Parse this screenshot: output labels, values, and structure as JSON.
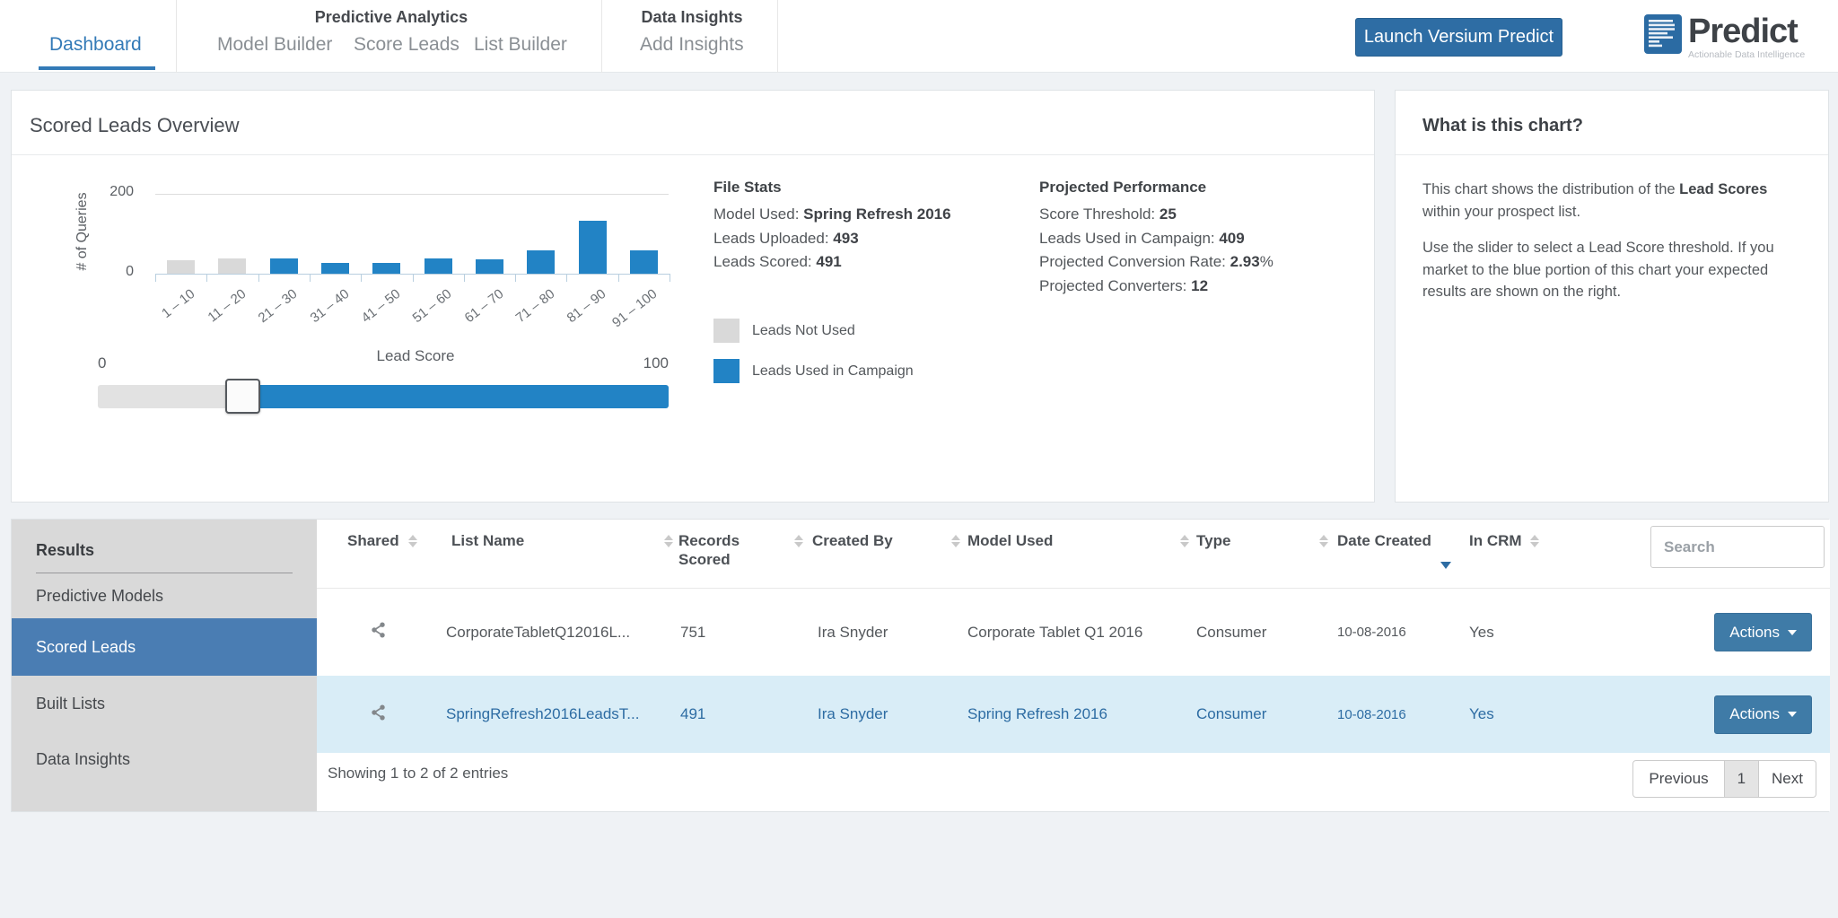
{
  "colors": {
    "accent_blue": "#337ab7",
    "bar_blue": "#2283c5",
    "bar_gray": "#d9d9d9",
    "selected_row_bg": "#d9edf7",
    "launch_button_blue": "#2e6da4",
    "actions_button_blue": "#3f7ba7",
    "sidebar_active_bg": "#4a7db3"
  },
  "nav": {
    "tabs": {
      "dashboard": "Dashboard"
    },
    "groups": [
      {
        "title": "Predictive Analytics",
        "items": [
          "Model Builder",
          "Score Leads",
          "List Builder"
        ]
      },
      {
        "title": "Data Insights",
        "items": [
          "Add Insights"
        ]
      }
    ],
    "launch_button": "Launch Versium Predict",
    "logo": {
      "name": "Predict",
      "tagline": "Actionable Data Intelligence"
    }
  },
  "overview_panel": {
    "title": "Scored Leads Overview",
    "file_stats": {
      "title": "File Stats",
      "rows": [
        {
          "label": "Model Used: ",
          "value": "Spring Refresh 2016"
        },
        {
          "label": "Leads Uploaded: ",
          "value": "493"
        },
        {
          "label": "Leads Scored: ",
          "value": "491"
        }
      ]
    },
    "projected_performance": {
      "title": "Projected Performance",
      "rows": [
        {
          "label": "Score Threshold: ",
          "value": "25"
        },
        {
          "label": "Leads Used in Campaign: ",
          "value": "409"
        },
        {
          "label": "Projected Conversion Rate: ",
          "value": "2.93",
          "suffix": "%"
        },
        {
          "label": "Projected Converters: ",
          "value": "12"
        }
      ]
    },
    "legend": [
      {
        "label": "Leads Not Used",
        "color": "#d9d9d9"
      },
      {
        "label": "Leads Used in Campaign",
        "color": "#2283c5"
      }
    ],
    "slider": {
      "min_label": "0",
      "max_label": "100",
      "threshold_percent": 25
    }
  },
  "chart_data": {
    "type": "bar",
    "title": "Scored Leads Overview",
    "xlabel": "Lead Score",
    "ylabel": "# of Queries",
    "ylim": [
      0,
      200
    ],
    "yticks": [
      "0",
      "200"
    ],
    "grid": "top gridline only",
    "legend_position": "right of chart",
    "categories": [
      "1 – 10",
      "11 – 20",
      "21 – 30",
      "31 – 40",
      "41 – 50",
      "51 – 60",
      "61 – 70",
      "71 – 80",
      "81 – 90",
      "91 – 100"
    ],
    "values": [
      33,
      39,
      39,
      28,
      26,
      39,
      35,
      59,
      133,
      59
    ],
    "bar_used_in_campaign": [
      false,
      false,
      true,
      true,
      true,
      true,
      true,
      true,
      true,
      true
    ],
    "series_colors": {
      "used": "#2283c5",
      "not_used": "#d9d9d9"
    },
    "legend": [
      "Leads Not Used",
      "Leads Used in Campaign"
    ]
  },
  "info_panel": {
    "title": "What is this chart?",
    "p1_pre": "This chart shows the distribution of the ",
    "p1_bold": "Lead Scores",
    "p1_post": " within your prospect list.",
    "p2": "Use the slider to select a Lead Score threshold. If you market to the blue portion of this chart your expected results are shown on the right."
  },
  "results": {
    "sidebar": {
      "title": "Results",
      "items": [
        {
          "label": "Predictive Models",
          "active": false
        },
        {
          "label": "Scored Leads",
          "active": true
        },
        {
          "label": "Built Lists",
          "active": false
        },
        {
          "label": "Data Insights",
          "active": false
        }
      ]
    },
    "search_placeholder": "Search",
    "table": {
      "headers": [
        "Shared",
        "List Name",
        "Records Scored",
        "Created By",
        "Model Used",
        "Type",
        "Date Created",
        "In CRM"
      ],
      "sorted_by": "Date Created",
      "sort_direction": "desc",
      "rows": [
        {
          "list_name": "CorporateTabletQ12016L...",
          "records_scored": "751",
          "created_by": "Ira Snyder",
          "model_used": "Corporate Tablet Q1 2016",
          "type": "Consumer",
          "date_created": "10-08-2016",
          "in_crm": "Yes",
          "actions_label": "Actions",
          "selected": false
        },
        {
          "list_name": "SpringRefresh2016LeadsT...",
          "records_scored": "491",
          "created_by": "Ira Snyder",
          "model_used": "Spring Refresh 2016",
          "type": "Consumer",
          "date_created": "10-08-2016",
          "in_crm": "Yes",
          "actions_label": "Actions",
          "selected": true
        }
      ]
    },
    "footer": {
      "showing": "Showing 1 to 2 of 2 entries",
      "pagination": {
        "previous": "Previous",
        "page": "1",
        "next": "Next"
      }
    }
  }
}
